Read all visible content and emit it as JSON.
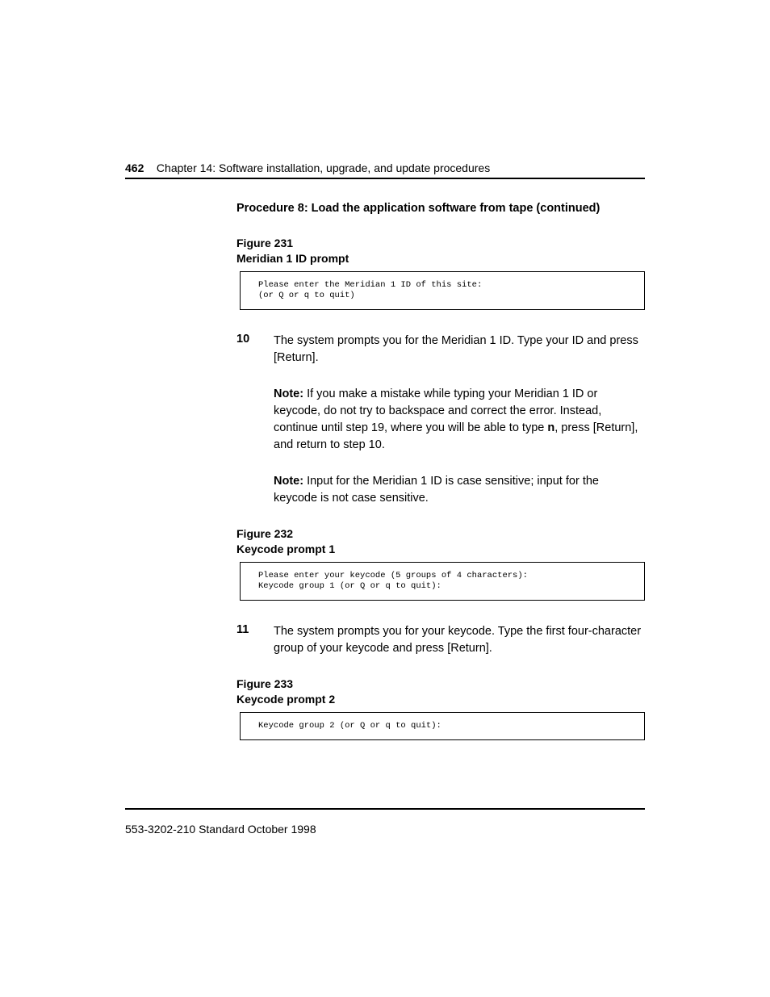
{
  "header": {
    "page_number": "462",
    "chapter_text": "Chapter 14: Software installation, upgrade, and update procedures"
  },
  "procedure_title": "Procedure 8: Load the application software from tape (continued)",
  "figure231": {
    "number": "Figure 231",
    "title": "Meridian 1 ID prompt",
    "code": "Please enter the Meridian 1 ID of this site:\n(or Q or q to quit)"
  },
  "step10": {
    "num": "10",
    "text": "The system prompts you for the Meridian 1 ID. Type your ID and press [Return]."
  },
  "note1": {
    "label": "Note:",
    "part1": "If you make a mistake while typing your Meridian 1 ID or keycode, do not try to backspace and correct the error. Instead, continue until step 19, where you will be able to type ",
    "bold": "n",
    "part2": ", press [Return], and return to step 10."
  },
  "note2": {
    "label": "Note:",
    "text": "Input for the Meridian 1 ID is case sensitive; input for the keycode is not case sensitive."
  },
  "figure232": {
    "number": "Figure 232",
    "title": "Keycode prompt 1",
    "code": "Please enter your keycode (5 groups of 4 characters):\nKeycode group 1 (or Q or q to quit):"
  },
  "step11": {
    "num": "11",
    "text": "The system prompts you for your keycode. Type the first four-character group of your keycode and press [Return]."
  },
  "figure233": {
    "number": "Figure 233",
    "title": "Keycode prompt 2",
    "code": "Keycode group 2 (or Q or q to quit):"
  },
  "footer_text": "553-3202-210   Standard   October 1998"
}
